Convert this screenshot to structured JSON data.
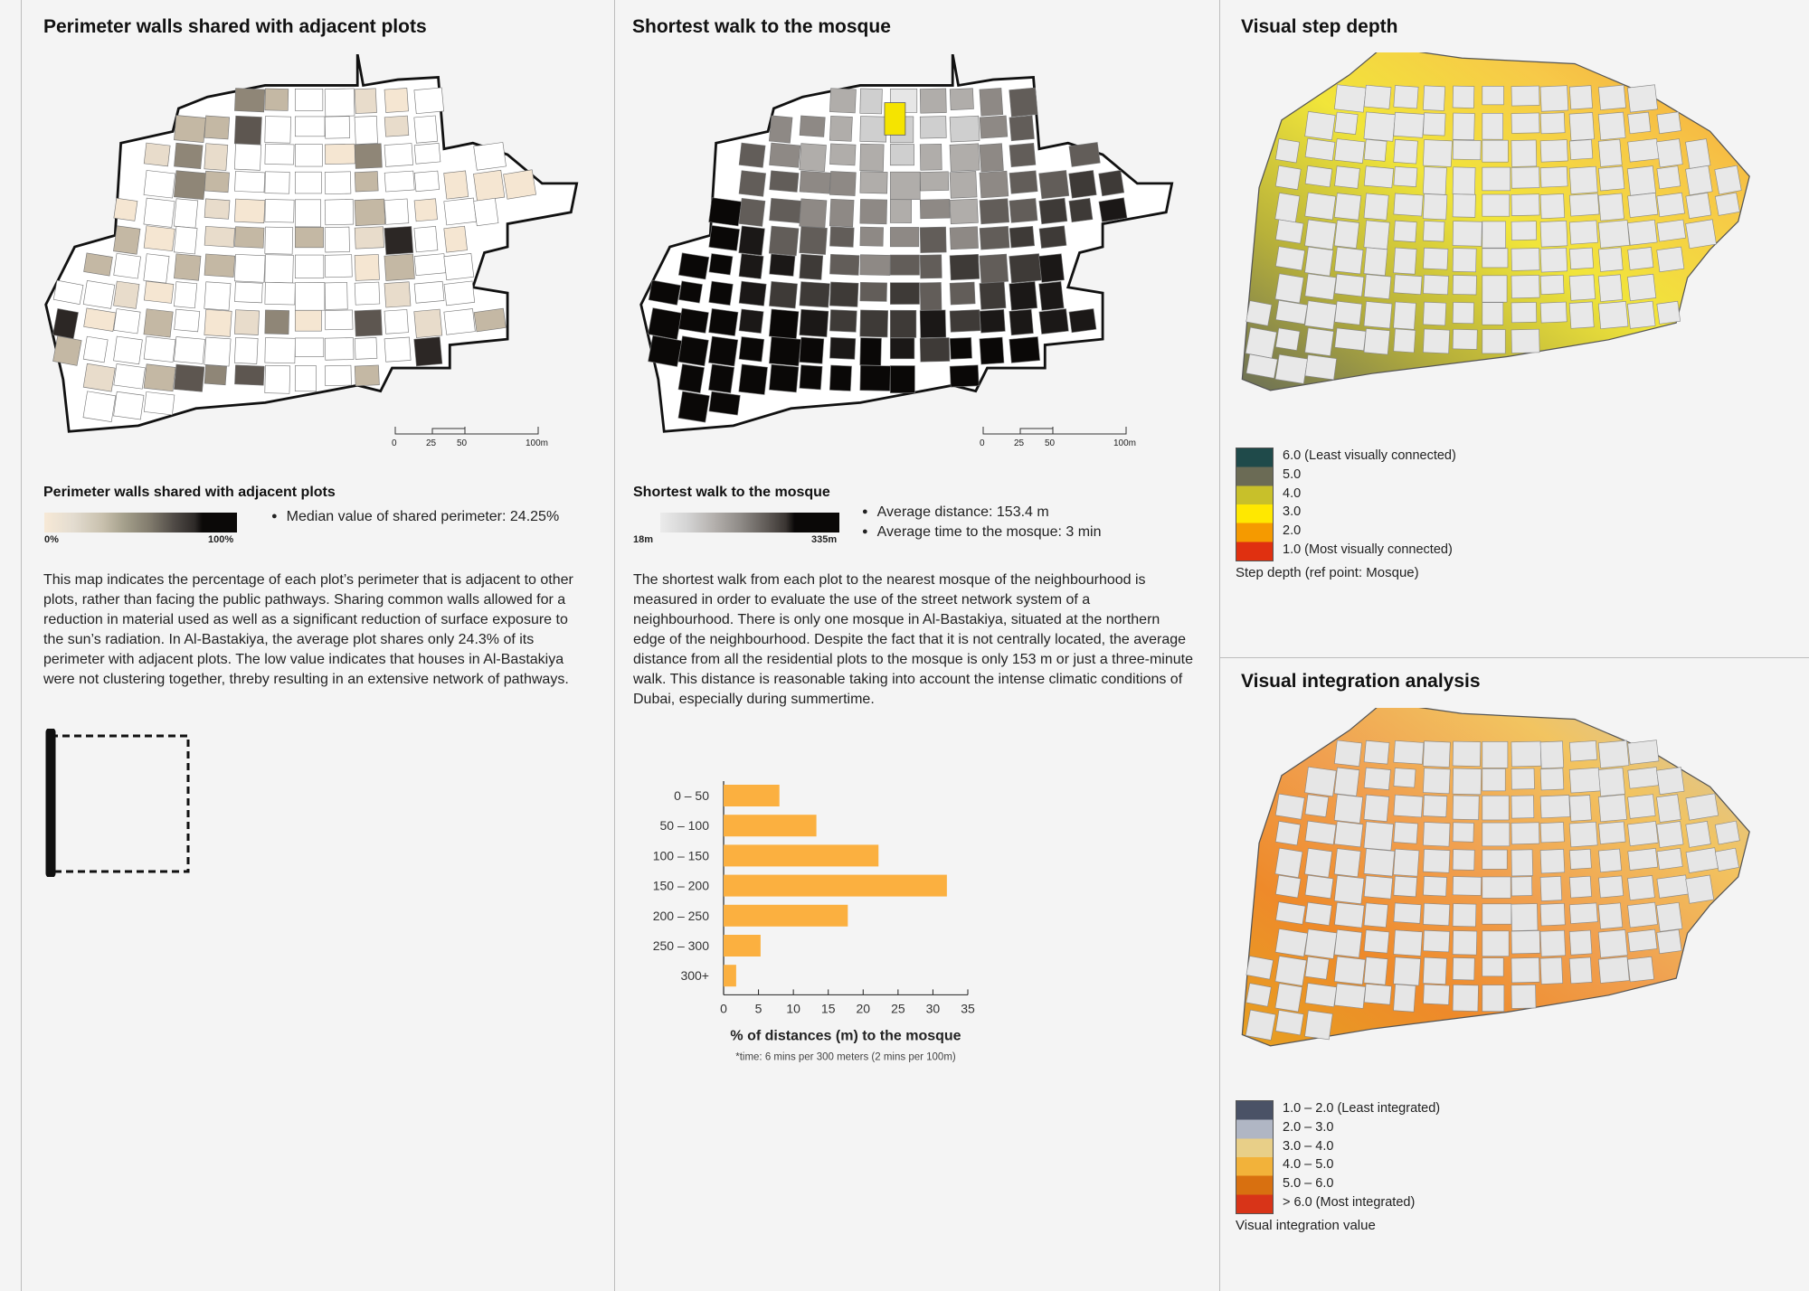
{
  "panel1": {
    "title": "Perimeter walls shared with adjacent plots",
    "legend_title": "Perimeter walls shared with adjacent plots",
    "legend_min": "0%",
    "legend_max": "100%",
    "bullet": "Median value of shared perimeter: 24.25%",
    "paragraph": "This map indicates the percentage of each plot’s perimeter that is adjacent to other plots, rather than facing the public pathways. Sharing common walls allowed for a reduction in material used as well as a significant reduction of surface exposure to the sun’s radiation. In Al-Bastakiya, the average plot shares only 24.3% of its perimeter with adjacent plots. The low value indicates that houses in Al-Bastakiya were not clustering together, threby resulting in an extensive network of pathways.",
    "scale": [
      "0",
      "25",
      "50",
      "100m"
    ]
  },
  "panel2": {
    "title": "Shortest walk to the mosque",
    "legend_title": "Shortest walk to the mosque",
    "legend_min": "18m",
    "legend_max": "335m",
    "bullets": [
      "Average distance: 153.4 m",
      "Average time to the mosque: 3 min"
    ],
    "paragraph": "The shortest walk from each plot to the nearest mosque of the neighbourhood is measured in order to evaluate the use of the street network system of a neighbourhood. There is only one mosque in Al-Bastakiya, situated at the northern edge of the neighbourhood. Despite the fact that it is not centrally located, the average distance from all the residential plots to the mosque is only 153 m or just a three-minute walk. This distance is reasonable taking into account the intense climatic conditions of Dubai, especially during summertime.",
    "scale": [
      "0",
      "25",
      "50",
      "100m"
    ],
    "mosque_color": "#f5e400"
  },
  "panel3": {
    "title": "Visual step depth",
    "legend": [
      "6.0 (Least visually connected)",
      "5.0",
      "4.0",
      "3.0",
      "2.0",
      "1.0 (Most visually connected)"
    ],
    "legend_caption": "Step depth (ref point: Mosque)",
    "colors": [
      "#1f4a4a",
      "#6b6b55",
      "#c8c02a",
      "#ffe800",
      "#f59a00",
      "#e03010"
    ]
  },
  "panel4": {
    "title": "Visual integration analysis",
    "legend": [
      "1.0 – 2.0 (Least integrated)",
      "2.0 – 3.0",
      "3.0 – 4.0",
      "4.0 – 5.0",
      "5.0 – 6.0",
      "> 6.0 (Most integrated)"
    ],
    "legend_caption": "Visual integration value",
    "colors": [
      "#4a5266",
      "#b0b6c4",
      "#e8cf88",
      "#f2b23a",
      "#d87010",
      "#d83418"
    ]
  },
  "chart_data": {
    "type": "bar",
    "orientation": "horizontal",
    "categories": [
      "0 – 50",
      "50 – 100",
      "100 – 150",
      "150 – 200",
      "200 – 250",
      "250 – 300",
      "300+"
    ],
    "values": [
      8,
      13.3,
      22.2,
      32,
      17.8,
      5.3,
      1.8
    ],
    "xlabel": "% of distances (m) to the mosque",
    "note": "*time: 6 mins per 300 meters (2 mins per 100m)",
    "xlim": [
      0,
      35
    ],
    "xticks": [
      "0",
      "5",
      "10",
      "15",
      "20",
      "25",
      "30",
      "35"
    ],
    "bar_color": "#fbb040"
  }
}
